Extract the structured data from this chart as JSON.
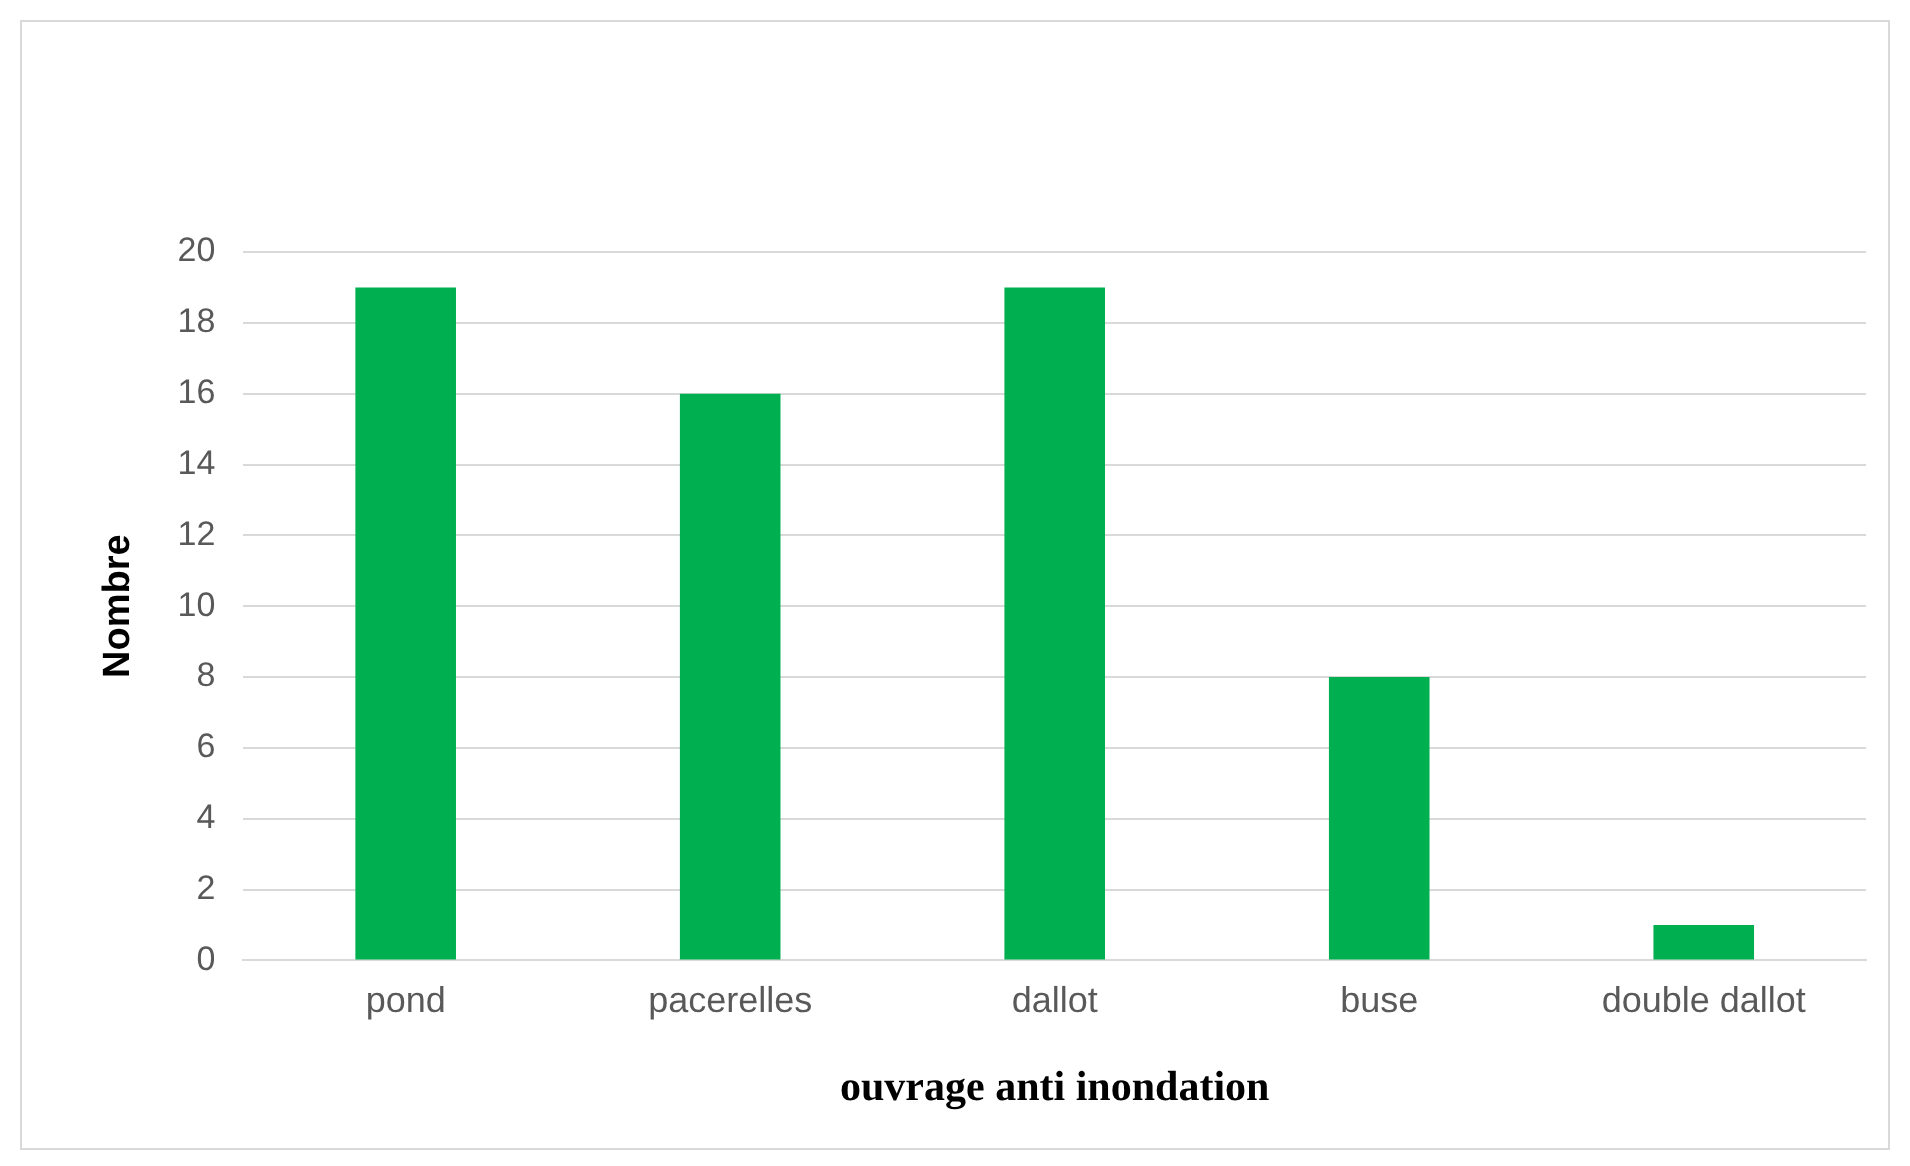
{
  "chart_data": {
    "type": "bar",
    "xlabel": "ouvrage anti inondation",
    "ylabel": "Nombre",
    "categories": [
      "pond",
      "pacerelles",
      "dallot",
      "buse",
      "double dallot"
    ],
    "values": [
      19,
      16,
      19,
      8,
      1
    ],
    "color": "#00b050",
    "ylim": [
      0,
      20
    ],
    "yticks": [
      0,
      2,
      4,
      6,
      8,
      10,
      12,
      14,
      16,
      18,
      20
    ],
    "grid": "y",
    "legend": false
  }
}
